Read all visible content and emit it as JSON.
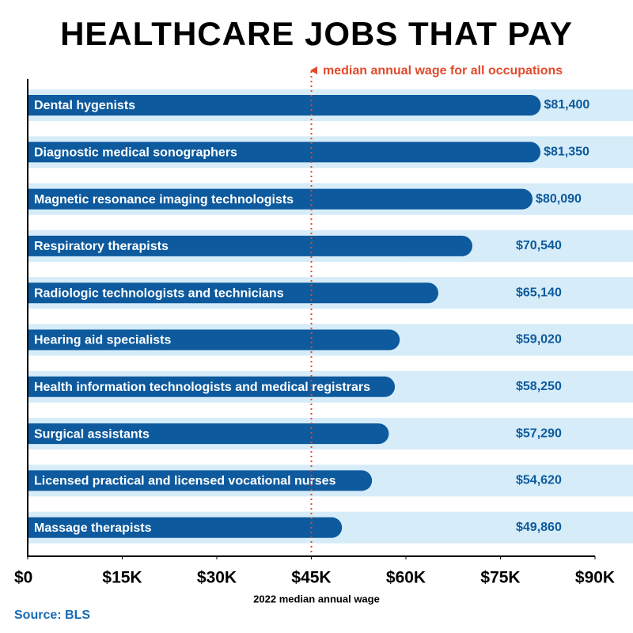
{
  "chart_data": {
    "type": "bar",
    "orientation": "horizontal",
    "title": "HEALTHCARE JOBS THAT PAY",
    "annotation": "median annual wage for all occupations",
    "reference_line": 45000,
    "reference_color": "#e24a2c",
    "categories": [
      "Dental hygenists",
      "Diagnostic medical sonographers",
      "Magnetic resonance imaging technologists",
      "Respiratory therapists",
      "Radiologic technologists and technicians",
      "Hearing aid specialists",
      "Health information technologists and medical registrars",
      "Surgical assistants",
      "Licensed practical and licensed vocational nurses",
      "Massage therapists"
    ],
    "values": [
      81400,
      81350,
      80090,
      70540,
      65140,
      59020,
      58250,
      57290,
      54620,
      49860
    ],
    "value_labels": [
      "$81,400",
      "$81,350",
      "$80,090",
      "$70,540",
      "$65,140",
      "$59,020",
      "$58,250",
      "$57,290",
      "$54,620",
      "$49,860"
    ],
    "color": "#0d5a9e",
    "band_color": "#d6ecf8",
    "xlim": [
      0,
      90000
    ],
    "xticks": [
      {
        "value": 0,
        "label": "$0"
      },
      {
        "value": 15000,
        "label": "$15K"
      },
      {
        "value": 30000,
        "label": "$30K"
      },
      {
        "value": 45000,
        "label": "$45K"
      },
      {
        "value": 60000,
        "label": "$60K"
      },
      {
        "value": 75000,
        "label": "$75K"
      },
      {
        "value": 90000,
        "label": "$90K"
      }
    ],
    "xlabel": "2022 median annual wage",
    "source": "Source: BLS"
  }
}
